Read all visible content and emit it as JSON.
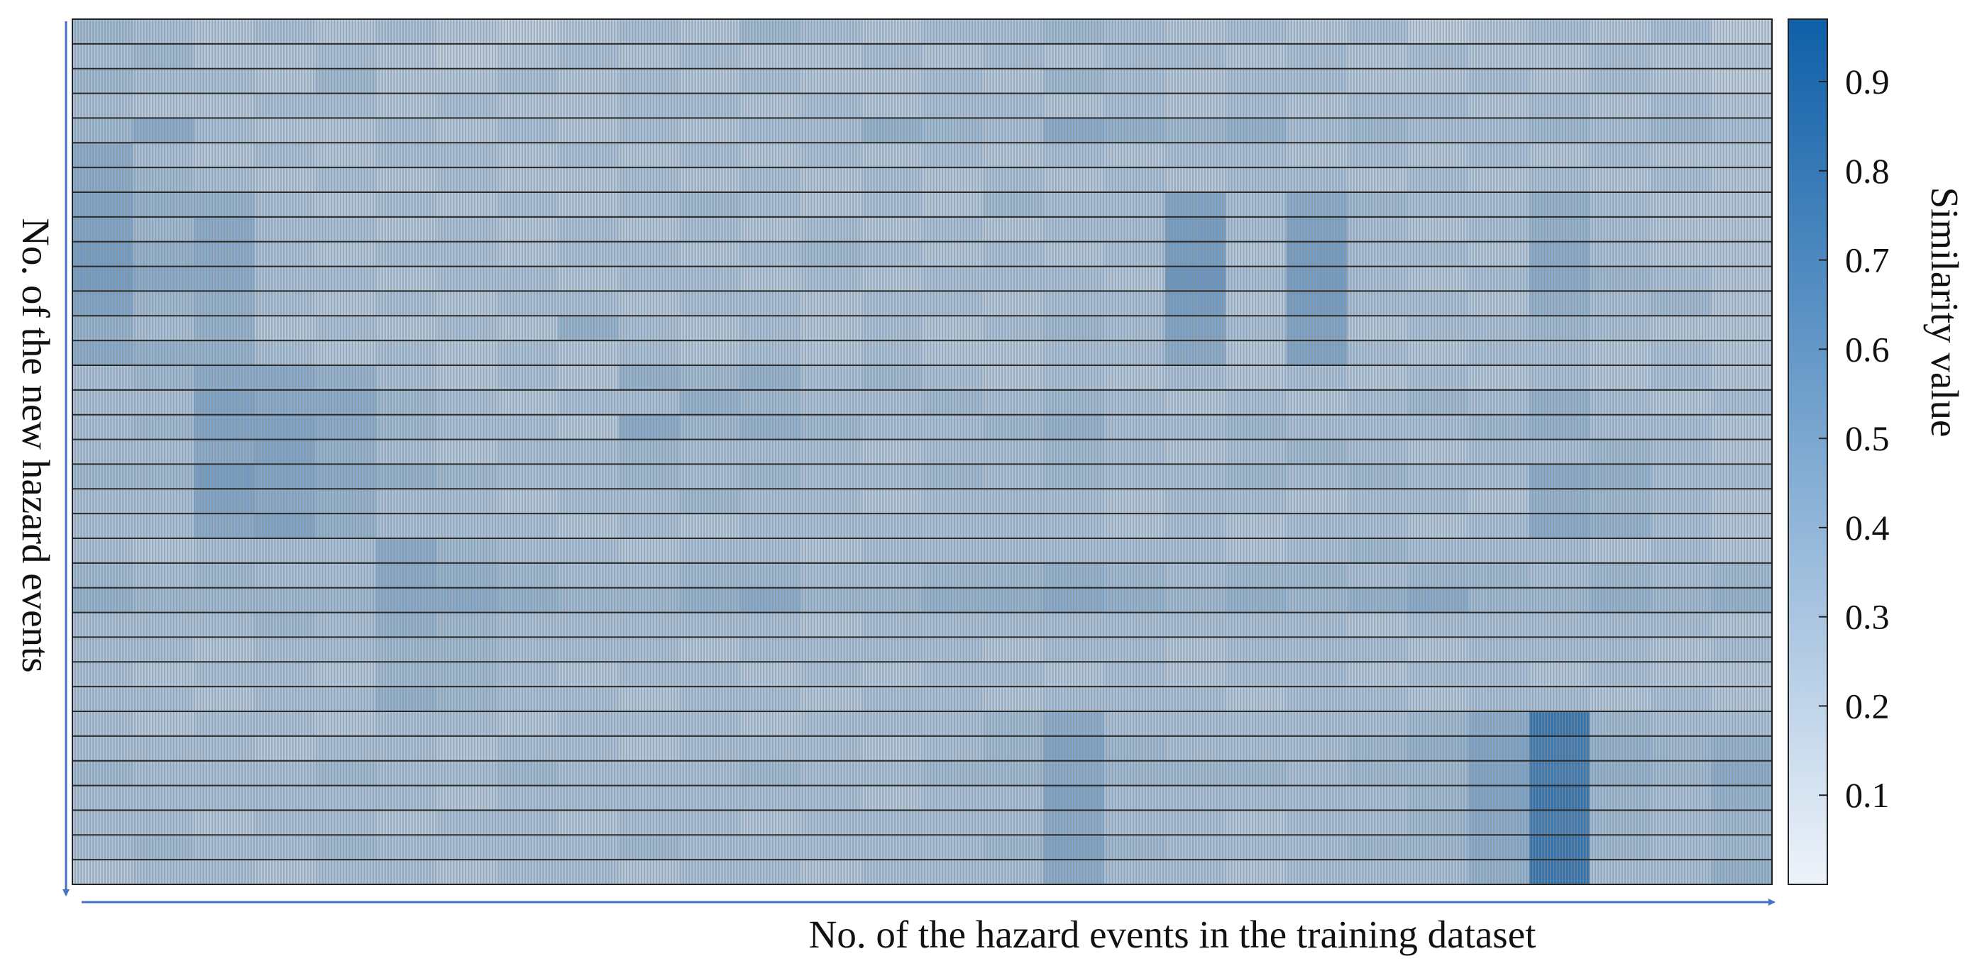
{
  "chart_data": {
    "type": "heatmap",
    "xlabel": "No. of the hazard events in the training dataset",
    "ylabel": "No. of the new hazard events",
    "colorbar_label": "Similarity value",
    "clim": [
      0,
      0.97
    ],
    "cticks": [
      0.1,
      0.2,
      0.3,
      0.4,
      0.5,
      0.6,
      0.7,
      0.8,
      0.9
    ],
    "colormap": [
      "#eef3fa",
      "#0f5fa8"
    ],
    "values": [
      [
        0.35,
        0.3,
        0.25,
        0.3,
        0.25,
        0.3,
        0.25,
        0.2,
        0.25,
        0.3,
        0.25,
        0.35,
        0.3,
        0.25,
        0.3,
        0.3,
        0.35,
        0.3,
        0.25,
        0.3,
        0.25,
        0.3,
        0.2,
        0.25,
        0.3,
        0.25,
        0.3,
        0.2
      ],
      [
        0.3,
        0.35,
        0.25,
        0.25,
        0.3,
        0.25,
        0.2,
        0.25,
        0.3,
        0.25,
        0.3,
        0.25,
        0.25,
        0.3,
        0.25,
        0.3,
        0.25,
        0.3,
        0.3,
        0.25,
        0.3,
        0.25,
        0.3,
        0.25,
        0.25,
        0.3,
        0.25,
        0.25
      ],
      [
        0.35,
        0.3,
        0.3,
        0.25,
        0.35,
        0.25,
        0.25,
        0.3,
        0.25,
        0.3,
        0.25,
        0.3,
        0.25,
        0.25,
        0.3,
        0.25,
        0.35,
        0.3,
        0.25,
        0.3,
        0.3,
        0.25,
        0.25,
        0.3,
        0.25,
        0.3,
        0.25,
        0.2
      ],
      [
        0.3,
        0.25,
        0.25,
        0.3,
        0.3,
        0.25,
        0.3,
        0.25,
        0.25,
        0.3,
        0.3,
        0.25,
        0.3,
        0.25,
        0.3,
        0.3,
        0.25,
        0.3,
        0.25,
        0.3,
        0.25,
        0.3,
        0.3,
        0.25,
        0.3,
        0.25,
        0.3,
        0.25
      ],
      [
        0.35,
        0.45,
        0.3,
        0.25,
        0.25,
        0.3,
        0.25,
        0.3,
        0.25,
        0.3,
        0.25,
        0.3,
        0.3,
        0.4,
        0.35,
        0.3,
        0.45,
        0.4,
        0.35,
        0.4,
        0.3,
        0.35,
        0.3,
        0.3,
        0.35,
        0.3,
        0.35,
        0.3
      ],
      [
        0.45,
        0.3,
        0.25,
        0.3,
        0.25,
        0.3,
        0.3,
        0.25,
        0.3,
        0.25,
        0.3,
        0.25,
        0.3,
        0.25,
        0.3,
        0.25,
        0.3,
        0.25,
        0.3,
        0.3,
        0.25,
        0.3,
        0.25,
        0.3,
        0.25,
        0.3,
        0.25,
        0.25
      ],
      [
        0.45,
        0.35,
        0.3,
        0.25,
        0.3,
        0.25,
        0.3,
        0.25,
        0.25,
        0.3,
        0.25,
        0.3,
        0.25,
        0.3,
        0.25,
        0.3,
        0.25,
        0.3,
        0.25,
        0.3,
        0.3,
        0.25,
        0.3,
        0.25,
        0.3,
        0.25,
        0.3,
        0.25
      ],
      [
        0.5,
        0.4,
        0.4,
        0.3,
        0.25,
        0.3,
        0.25,
        0.3,
        0.25,
        0.3,
        0.35,
        0.3,
        0.25,
        0.3,
        0.25,
        0.35,
        0.3,
        0.3,
        0.5,
        0.3,
        0.45,
        0.35,
        0.3,
        0.3,
        0.4,
        0.3,
        0.25,
        0.25
      ],
      [
        0.5,
        0.35,
        0.45,
        0.3,
        0.3,
        0.25,
        0.3,
        0.25,
        0.3,
        0.25,
        0.3,
        0.25,
        0.3,
        0.25,
        0.3,
        0.25,
        0.3,
        0.3,
        0.55,
        0.3,
        0.5,
        0.3,
        0.25,
        0.3,
        0.4,
        0.3,
        0.25,
        0.25
      ],
      [
        0.55,
        0.4,
        0.45,
        0.3,
        0.25,
        0.3,
        0.3,
        0.25,
        0.3,
        0.3,
        0.25,
        0.3,
        0.35,
        0.3,
        0.25,
        0.3,
        0.25,
        0.3,
        0.55,
        0.25,
        0.55,
        0.3,
        0.3,
        0.25,
        0.45,
        0.3,
        0.25,
        0.25
      ],
      [
        0.55,
        0.45,
        0.45,
        0.3,
        0.3,
        0.25,
        0.3,
        0.3,
        0.25,
        0.3,
        0.3,
        0.25,
        0.3,
        0.25,
        0.3,
        0.3,
        0.3,
        0.25,
        0.6,
        0.3,
        0.55,
        0.3,
        0.25,
        0.3,
        0.45,
        0.35,
        0.3,
        0.25
      ],
      [
        0.5,
        0.35,
        0.4,
        0.3,
        0.25,
        0.3,
        0.25,
        0.3,
        0.3,
        0.25,
        0.3,
        0.3,
        0.25,
        0.3,
        0.3,
        0.25,
        0.3,
        0.3,
        0.55,
        0.25,
        0.55,
        0.3,
        0.3,
        0.25,
        0.4,
        0.3,
        0.35,
        0.25
      ],
      [
        0.4,
        0.3,
        0.4,
        0.25,
        0.3,
        0.25,
        0.3,
        0.25,
        0.4,
        0.3,
        0.25,
        0.3,
        0.25,
        0.3,
        0.25,
        0.3,
        0.35,
        0.3,
        0.5,
        0.3,
        0.5,
        0.25,
        0.3,
        0.3,
        0.35,
        0.3,
        0.25,
        0.25
      ],
      [
        0.45,
        0.4,
        0.4,
        0.3,
        0.25,
        0.3,
        0.25,
        0.3,
        0.25,
        0.3,
        0.25,
        0.3,
        0.25,
        0.3,
        0.25,
        0.25,
        0.3,
        0.3,
        0.45,
        0.25,
        0.5,
        0.3,
        0.25,
        0.3,
        0.3,
        0.25,
        0.3,
        0.25
      ],
      [
        0.3,
        0.35,
        0.45,
        0.45,
        0.4,
        0.3,
        0.25,
        0.3,
        0.25,
        0.4,
        0.35,
        0.4,
        0.3,
        0.35,
        0.3,
        0.25,
        0.3,
        0.25,
        0.3,
        0.25,
        0.3,
        0.25,
        0.3,
        0.25,
        0.3,
        0.25,
        0.3,
        0.25
      ],
      [
        0.3,
        0.3,
        0.5,
        0.45,
        0.45,
        0.35,
        0.3,
        0.25,
        0.3,
        0.3,
        0.4,
        0.35,
        0.3,
        0.3,
        0.35,
        0.3,
        0.35,
        0.3,
        0.25,
        0.3,
        0.25,
        0.3,
        0.35,
        0.3,
        0.4,
        0.3,
        0.25,
        0.3
      ],
      [
        0.3,
        0.35,
        0.5,
        0.5,
        0.45,
        0.35,
        0.3,
        0.3,
        0.25,
        0.45,
        0.35,
        0.4,
        0.35,
        0.3,
        0.3,
        0.35,
        0.4,
        0.3,
        0.3,
        0.35,
        0.3,
        0.3,
        0.3,
        0.35,
        0.4,
        0.3,
        0.3,
        0.25
      ],
      [
        0.3,
        0.3,
        0.45,
        0.5,
        0.4,
        0.3,
        0.25,
        0.3,
        0.3,
        0.35,
        0.3,
        0.3,
        0.3,
        0.25,
        0.3,
        0.3,
        0.35,
        0.3,
        0.25,
        0.3,
        0.35,
        0.3,
        0.25,
        0.3,
        0.3,
        0.35,
        0.3,
        0.25
      ],
      [
        0.35,
        0.35,
        0.55,
        0.5,
        0.45,
        0.4,
        0.35,
        0.3,
        0.3,
        0.35,
        0.3,
        0.35,
        0.3,
        0.3,
        0.35,
        0.3,
        0.35,
        0.3,
        0.3,
        0.35,
        0.3,
        0.35,
        0.3,
        0.3,
        0.45,
        0.4,
        0.3,
        0.3
      ],
      [
        0.3,
        0.3,
        0.5,
        0.45,
        0.4,
        0.3,
        0.3,
        0.25,
        0.3,
        0.3,
        0.35,
        0.3,
        0.3,
        0.25,
        0.3,
        0.3,
        0.3,
        0.25,
        0.3,
        0.3,
        0.25,
        0.3,
        0.3,
        0.25,
        0.4,
        0.35,
        0.3,
        0.25
      ],
      [
        0.3,
        0.3,
        0.45,
        0.5,
        0.4,
        0.3,
        0.3,
        0.3,
        0.25,
        0.3,
        0.25,
        0.3,
        0.3,
        0.3,
        0.3,
        0.3,
        0.3,
        0.25,
        0.3,
        0.25,
        0.3,
        0.3,
        0.25,
        0.3,
        0.45,
        0.4,
        0.3,
        0.25
      ],
      [
        0.3,
        0.25,
        0.3,
        0.3,
        0.3,
        0.45,
        0.35,
        0.3,
        0.3,
        0.25,
        0.3,
        0.3,
        0.25,
        0.3,
        0.3,
        0.3,
        0.3,
        0.3,
        0.3,
        0.25,
        0.3,
        0.35,
        0.3,
        0.3,
        0.3,
        0.25,
        0.3,
        0.25
      ],
      [
        0.35,
        0.3,
        0.35,
        0.3,
        0.3,
        0.45,
        0.4,
        0.35,
        0.3,
        0.3,
        0.35,
        0.35,
        0.3,
        0.3,
        0.35,
        0.35,
        0.4,
        0.35,
        0.3,
        0.35,
        0.35,
        0.3,
        0.35,
        0.35,
        0.3,
        0.35,
        0.3,
        0.35
      ],
      [
        0.4,
        0.35,
        0.35,
        0.35,
        0.35,
        0.45,
        0.45,
        0.4,
        0.35,
        0.35,
        0.4,
        0.45,
        0.35,
        0.35,
        0.4,
        0.4,
        0.45,
        0.4,
        0.35,
        0.4,
        0.35,
        0.4,
        0.45,
        0.35,
        0.35,
        0.4,
        0.35,
        0.4
      ],
      [
        0.3,
        0.3,
        0.3,
        0.35,
        0.3,
        0.4,
        0.35,
        0.3,
        0.3,
        0.3,
        0.3,
        0.3,
        0.25,
        0.3,
        0.3,
        0.3,
        0.3,
        0.3,
        0.3,
        0.3,
        0.3,
        0.25,
        0.3,
        0.3,
        0.3,
        0.3,
        0.3,
        0.25
      ],
      [
        0.3,
        0.3,
        0.25,
        0.3,
        0.3,
        0.35,
        0.35,
        0.3,
        0.3,
        0.3,
        0.25,
        0.3,
        0.3,
        0.3,
        0.3,
        0.25,
        0.3,
        0.3,
        0.25,
        0.3,
        0.3,
        0.3,
        0.25,
        0.3,
        0.3,
        0.3,
        0.25,
        0.3
      ],
      [
        0.3,
        0.25,
        0.3,
        0.3,
        0.25,
        0.35,
        0.35,
        0.3,
        0.25,
        0.3,
        0.3,
        0.25,
        0.3,
        0.25,
        0.3,
        0.3,
        0.25,
        0.3,
        0.25,
        0.3,
        0.3,
        0.25,
        0.3,
        0.3,
        0.25,
        0.3,
        0.25,
        0.25
      ],
      [
        0.3,
        0.3,
        0.25,
        0.3,
        0.3,
        0.4,
        0.35,
        0.3,
        0.3,
        0.25,
        0.3,
        0.3,
        0.25,
        0.3,
        0.3,
        0.25,
        0.3,
        0.3,
        0.3,
        0.25,
        0.3,
        0.3,
        0.25,
        0.3,
        0.3,
        0.25,
        0.3,
        0.25
      ],
      [
        0.3,
        0.25,
        0.3,
        0.3,
        0.25,
        0.3,
        0.3,
        0.25,
        0.3,
        0.3,
        0.3,
        0.25,
        0.3,
        0.3,
        0.3,
        0.35,
        0.45,
        0.3,
        0.3,
        0.3,
        0.3,
        0.3,
        0.35,
        0.45,
        0.85,
        0.35,
        0.3,
        0.3
      ],
      [
        0.3,
        0.3,
        0.3,
        0.25,
        0.3,
        0.3,
        0.25,
        0.3,
        0.3,
        0.25,
        0.3,
        0.3,
        0.3,
        0.25,
        0.3,
        0.35,
        0.5,
        0.35,
        0.3,
        0.3,
        0.3,
        0.35,
        0.4,
        0.5,
        0.8,
        0.4,
        0.35,
        0.4
      ],
      [
        0.35,
        0.3,
        0.3,
        0.3,
        0.35,
        0.3,
        0.3,
        0.35,
        0.3,
        0.3,
        0.3,
        0.35,
        0.3,
        0.3,
        0.35,
        0.35,
        0.45,
        0.35,
        0.35,
        0.35,
        0.3,
        0.35,
        0.35,
        0.5,
        0.8,
        0.4,
        0.35,
        0.45
      ],
      [
        0.3,
        0.3,
        0.3,
        0.3,
        0.3,
        0.3,
        0.25,
        0.3,
        0.3,
        0.3,
        0.3,
        0.3,
        0.3,
        0.25,
        0.3,
        0.3,
        0.5,
        0.3,
        0.3,
        0.3,
        0.3,
        0.3,
        0.35,
        0.5,
        0.85,
        0.35,
        0.3,
        0.4
      ],
      [
        0.3,
        0.3,
        0.25,
        0.3,
        0.3,
        0.25,
        0.3,
        0.3,
        0.25,
        0.3,
        0.3,
        0.25,
        0.3,
        0.3,
        0.3,
        0.3,
        0.45,
        0.3,
        0.3,
        0.25,
        0.3,
        0.3,
        0.35,
        0.45,
        0.8,
        0.35,
        0.3,
        0.35
      ],
      [
        0.3,
        0.35,
        0.3,
        0.3,
        0.35,
        0.3,
        0.3,
        0.3,
        0.3,
        0.35,
        0.3,
        0.3,
        0.3,
        0.3,
        0.3,
        0.35,
        0.5,
        0.35,
        0.3,
        0.3,
        0.3,
        0.35,
        0.35,
        0.45,
        0.85,
        0.35,
        0.3,
        0.35
      ],
      [
        0.25,
        0.3,
        0.3,
        0.25,
        0.3,
        0.3,
        0.25,
        0.3,
        0.3,
        0.25,
        0.3,
        0.3,
        0.25,
        0.3,
        0.3,
        0.3,
        0.45,
        0.3,
        0.3,
        0.25,
        0.3,
        0.3,
        0.3,
        0.4,
        0.85,
        0.3,
        0.3,
        0.4
      ]
    ]
  }
}
